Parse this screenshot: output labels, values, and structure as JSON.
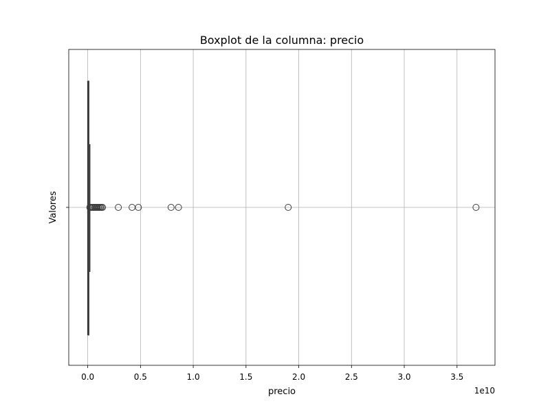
{
  "chart_data": {
    "type": "boxplot",
    "orientation": "horizontal",
    "title": "Boxplot de la columna: precio",
    "xlabel": "precio",
    "ylabel": "Valores",
    "x_scale_label": "1e10",
    "xlim": [
      -0.18,
      3.86
    ],
    "x_unit_multiplier": 10000000000,
    "x_ticks": [
      0.0,
      0.5,
      1.0,
      1.5,
      2.0,
      2.5,
      3.0,
      3.5
    ],
    "x_tick_labels": [
      "0.0",
      "0.5",
      "1.0",
      "1.5",
      "2.0",
      "2.5",
      "3.0",
      "3.5"
    ],
    "grid": true,
    "box": {
      "min": 0.0,
      "q1": 0.002,
      "median": 0.005,
      "q3": 0.01,
      "max": 0.02
    },
    "outliers": [
      0.02,
      0.03,
      0.04,
      0.05,
      0.06,
      0.07,
      0.08,
      0.09,
      0.1,
      0.11,
      0.12,
      0.13,
      0.14,
      0.29,
      0.42,
      0.48,
      0.79,
      0.86,
      1.9,
      3.68
    ],
    "colors": {
      "box": "#3a3a3a",
      "grid": "#b0b0b0"
    }
  }
}
